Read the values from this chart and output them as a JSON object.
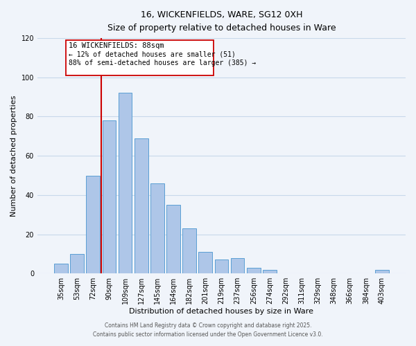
{
  "title": "16, WICKENFIELDS, WARE, SG12 0XH",
  "subtitle": "Size of property relative to detached houses in Ware",
  "xlabel": "Distribution of detached houses by size in Ware",
  "ylabel": "Number of detached properties",
  "bar_labels": [
    "35sqm",
    "53sqm",
    "72sqm",
    "90sqm",
    "109sqm",
    "127sqm",
    "145sqm",
    "164sqm",
    "182sqm",
    "201sqm",
    "219sqm",
    "237sqm",
    "256sqm",
    "274sqm",
    "292sqm",
    "311sqm",
    "329sqm",
    "348sqm",
    "366sqm",
    "384sqm",
    "403sqm"
  ],
  "bar_values": [
    5,
    10,
    50,
    78,
    92,
    69,
    46,
    35,
    23,
    11,
    7,
    8,
    3,
    2,
    0,
    0,
    0,
    0,
    0,
    0,
    2
  ],
  "bar_color": "#aec6e8",
  "bar_edge_color": "#5a9fd4",
  "vline_x_index": 3,
  "vline_color": "#cc0000",
  "ylim": [
    0,
    120
  ],
  "yticks": [
    0,
    20,
    40,
    60,
    80,
    100,
    120
  ],
  "annotation_title": "16 WICKENFIELDS: 88sqm",
  "annotation_line1": "← 12% of detached houses are smaller (51)",
  "annotation_line2": "88% of semi-detached houses are larger (385) →",
  "footer1": "Contains HM Land Registry data © Crown copyright and database right 2025.",
  "footer2": "Contains public sector information licensed under the Open Government Licence v3.0.",
  "background_color": "#f0f4fa",
  "grid_color": "#c8d8ea"
}
